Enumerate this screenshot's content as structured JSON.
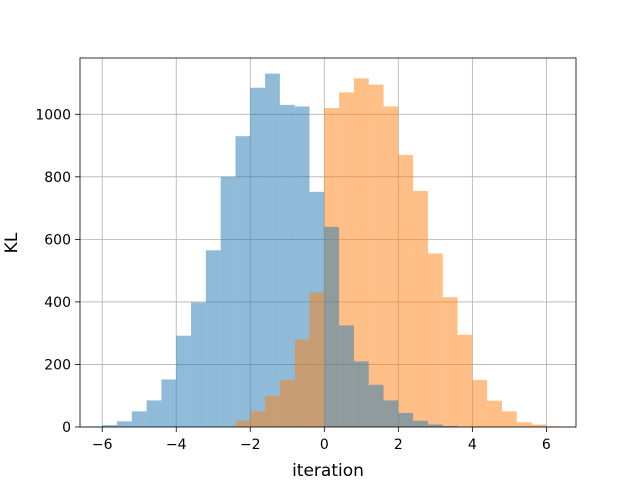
{
  "chart_data": {
    "type": "bar",
    "subtype": "overlapping-histogram",
    "xlabel": "iteration",
    "ylabel": "KL",
    "xlim": [
      -6.6,
      6.8
    ],
    "ylim": [
      0,
      1180
    ],
    "xticks": [
      -6,
      -4,
      -2,
      0,
      2,
      4,
      6
    ],
    "xtick_labels": [
      "−6",
      "−4",
      "−2",
      "0",
      "2",
      "4",
      "6"
    ],
    "yticks": [
      0,
      200,
      400,
      600,
      800,
      1000
    ],
    "ytick_labels": [
      "0",
      "200",
      "400",
      "600",
      "800",
      "1000"
    ],
    "grid": true,
    "bar_opacity": 0.5,
    "series": [
      {
        "color": "#1f77b4",
        "bins": [
          [
            -6.4,
            -6.0,
            2
          ],
          [
            -6.0,
            -5.6,
            6
          ],
          [
            -5.6,
            -5.2,
            18
          ],
          [
            -5.2,
            -4.8,
            50
          ],
          [
            -4.8,
            -4.4,
            85
          ],
          [
            -4.4,
            -4.0,
            152
          ],
          [
            -4.0,
            -3.6,
            292
          ],
          [
            -3.6,
            -3.2,
            398
          ],
          [
            -3.2,
            -2.8,
            565
          ],
          [
            -2.8,
            -2.4,
            800
          ],
          [
            -2.4,
            -2.0,
            930
          ],
          [
            -2.0,
            -1.6,
            1085
          ],
          [
            -1.6,
            -1.2,
            1130
          ],
          [
            -1.2,
            -0.8,
            1030
          ],
          [
            -0.8,
            -0.4,
            1025
          ],
          [
            -0.4,
            0.0,
            752
          ]
        ]
      },
      {
        "color": "#ff7f0e",
        "bins": [
          [
            -2.4,
            -2.0,
            20
          ],
          [
            -2.0,
            -1.6,
            50
          ],
          [
            -1.6,
            -1.2,
            100
          ],
          [
            -1.2,
            -0.8,
            150
          ],
          [
            -0.8,
            -0.4,
            280
          ],
          [
            -0.4,
            0.0,
            430
          ],
          [
            0.0,
            0.4,
            1020
          ],
          [
            0.4,
            0.8,
            1070
          ],
          [
            0.8,
            1.2,
            1115
          ],
          [
            1.2,
            1.6,
            1095
          ],
          [
            1.6,
            2.0,
            1025
          ],
          [
            2.0,
            2.4,
            870
          ],
          [
            2.4,
            2.8,
            755
          ],
          [
            2.8,
            3.2,
            555
          ],
          [
            3.2,
            3.6,
            415
          ],
          [
            3.6,
            4.0,
            295
          ],
          [
            4.0,
            4.4,
            150
          ],
          [
            4.4,
            4.8,
            84
          ],
          [
            4.8,
            5.2,
            50
          ],
          [
            5.2,
            5.6,
            15
          ],
          [
            5.6,
            6.0,
            8
          ],
          [
            6.0,
            6.4,
            2
          ]
        ]
      },
      {
        "color": "#1f77b4",
        "bins": [
          [
            0.0,
            0.4,
            640
          ],
          [
            0.4,
            0.8,
            325
          ],
          [
            0.8,
            1.2,
            210
          ],
          [
            1.2,
            1.6,
            135
          ],
          [
            1.6,
            2.0,
            85
          ],
          [
            2.0,
            2.4,
            45
          ],
          [
            2.4,
            2.8,
            20
          ],
          [
            2.8,
            3.2,
            8
          ],
          [
            3.2,
            3.6,
            3
          ]
        ]
      }
    ]
  }
}
